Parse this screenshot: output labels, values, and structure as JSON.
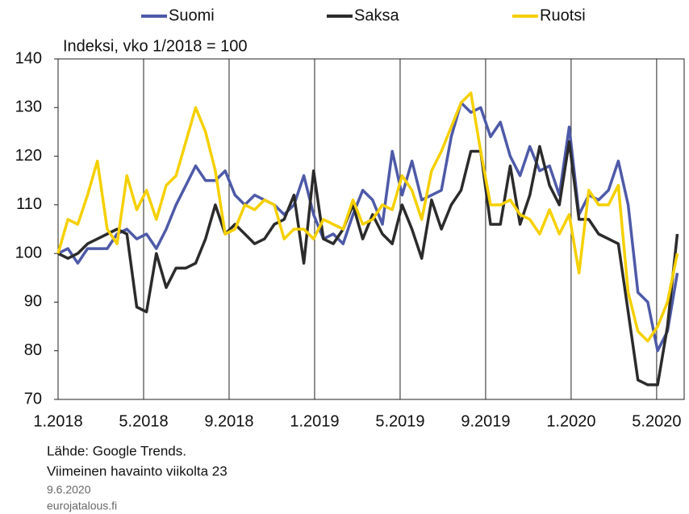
{
  "chart_data": {
    "type": "line",
    "subtitle": "Indeksi, vko 1/2018 = 100",
    "x": [
      0,
      2,
      4,
      6,
      8,
      10,
      12,
      14,
      16,
      18,
      20,
      22,
      24,
      26,
      28,
      30,
      32,
      34,
      36,
      38,
      40,
      42,
      44,
      46,
      48,
      50,
      52,
      54,
      56,
      58,
      60,
      62,
      64,
      66,
      68,
      70,
      72,
      74,
      76,
      78,
      80,
      82,
      84,
      86,
      88,
      90,
      92,
      94,
      96,
      98,
      100,
      102,
      104,
      106,
      108,
      110,
      112,
      114,
      116,
      118,
      120,
      122,
      124,
      126
    ],
    "series": [
      {
        "name": "Suomi",
        "color": "#4e5aa8",
        "values": [
          100,
          101,
          98,
          101,
          101,
          101,
          104,
          105,
          103,
          104,
          101,
          105,
          110,
          114,
          118,
          115,
          115,
          117,
          112,
          110,
          112,
          111,
          110,
          108,
          110,
          116,
          108,
          103,
          104,
          102,
          108,
          113,
          111,
          106,
          121,
          112,
          119,
          111,
          112,
          113,
          124,
          131,
          129,
          130,
          124,
          127,
          120,
          116,
          122,
          117,
          118,
          112,
          126,
          108,
          112,
          111,
          113,
          119,
          110,
          92,
          90,
          80,
          84,
          96
        ]
      },
      {
        "name": "Saksa",
        "color": "#2b2b2b",
        "values": [
          100,
          99,
          100,
          102,
          103,
          104,
          105,
          104,
          89,
          88,
          100,
          93,
          97,
          97,
          98,
          103,
          110,
          104,
          106,
          104,
          102,
          103,
          106,
          107,
          112,
          98,
          117,
          103,
          102,
          105,
          110,
          103,
          108,
          104,
          102,
          110,
          105,
          99,
          111,
          105,
          110,
          113,
          121,
          121,
          106,
          106,
          118,
          106,
          112,
          122,
          114,
          110,
          123,
          107,
          107,
          104,
          103,
          102,
          88,
          74,
          73,
          73,
          85,
          104
        ]
      },
      {
        "name": "Ruotsi",
        "color": "#f5d000",
        "values": [
          100,
          107,
          106,
          112,
          119,
          105,
          102,
          116,
          109,
          113,
          107,
          114,
          116,
          123,
          130,
          125,
          117,
          104,
          105,
          110,
          109,
          111,
          110,
          103,
          105,
          105,
          103,
          107,
          106,
          105,
          111,
          106,
          107,
          110,
          109,
          116,
          113,
          107,
          117,
          121,
          126,
          131,
          133,
          121,
          110,
          110,
          111,
          108,
          107,
          104,
          109,
          104,
          108,
          96,
          113,
          110,
          110,
          114,
          92,
          84,
          82,
          85,
          90,
          100
        ]
      }
    ],
    "xlim": [
      0,
      127.4
    ],
    "xticks": [
      {
        "value": 0,
        "label": "1.2018"
      },
      {
        "value": 17.4,
        "label": "5.2018"
      },
      {
        "value": 34.8,
        "label": "9.2018"
      },
      {
        "value": 52.2,
        "label": "1.2019"
      },
      {
        "value": 69.6,
        "label": "5.2019"
      },
      {
        "value": 87,
        "label": "9.2019"
      },
      {
        "value": 104.4,
        "label": "1.2020"
      },
      {
        "value": 121.8,
        "label": "5.2020"
      }
    ],
    "ylim": [
      70,
      140
    ],
    "yticks": [
      70,
      80,
      90,
      100,
      110,
      120,
      130,
      140
    ],
    "grid": "x",
    "legend": "top"
  },
  "footer": {
    "source": "Lähde: Google Trends.",
    "note": "Viimeinen havainto viikolta 23",
    "date": "9.6.2020",
    "site": "eurojatalous.fi"
  }
}
